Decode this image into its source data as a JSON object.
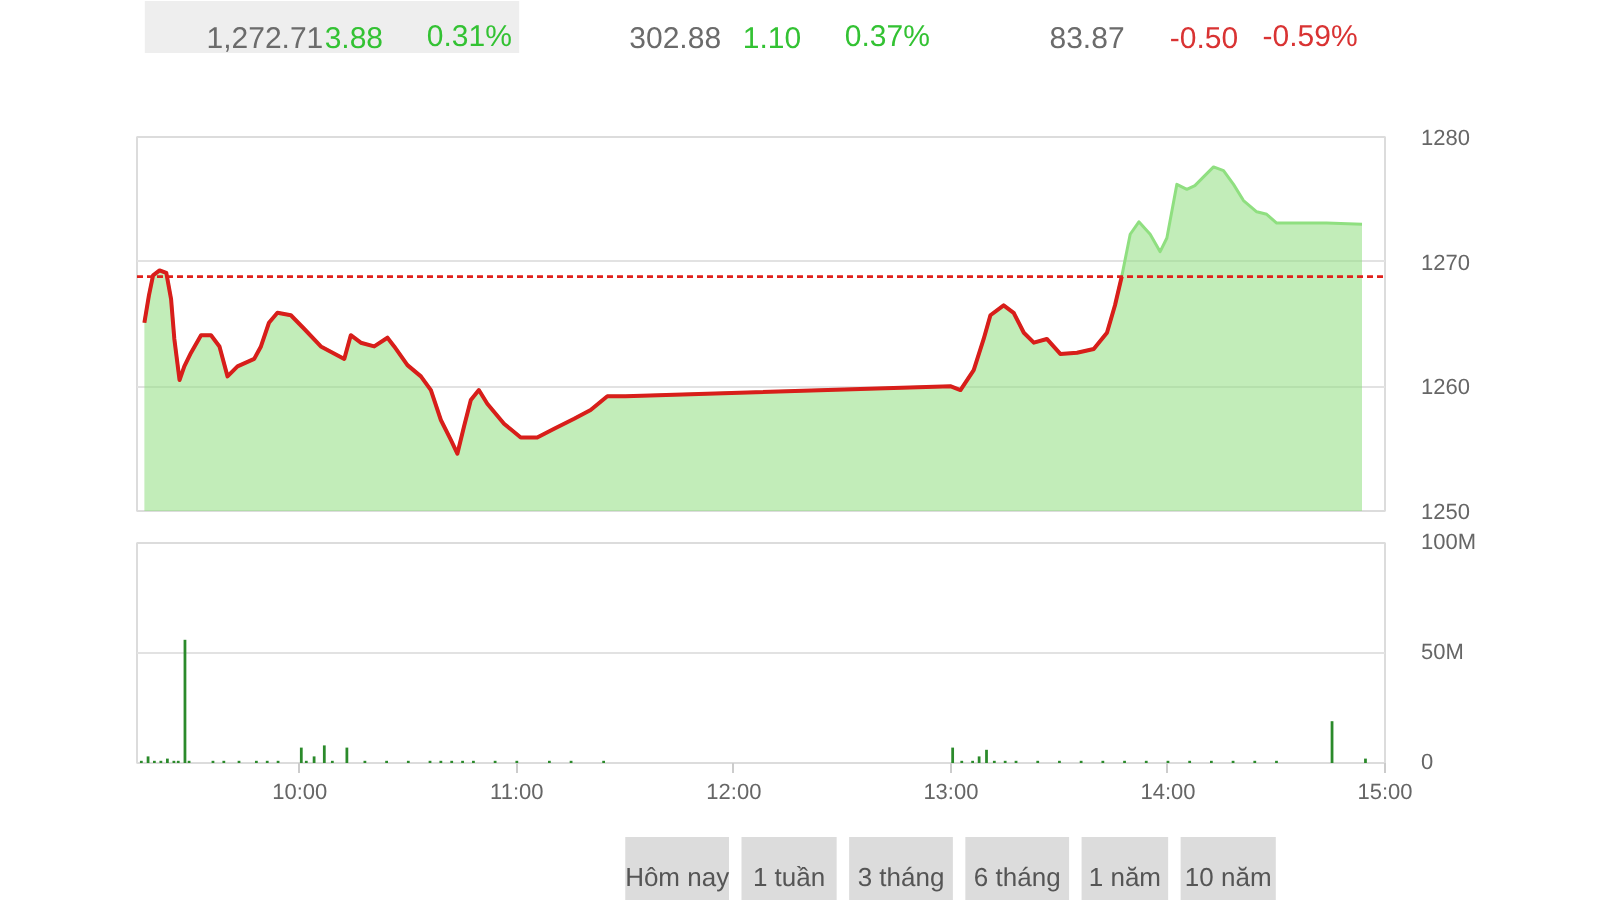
{
  "chart_data": [
    {
      "type": "other",
      "annotations": [
        "1,272.71",
        "3.88",
        "0.31%",
        "302.88",
        "1.10",
        "0.37%",
        "83.87",
        "-0.50",
        "-0.59%"
      ],
      "colors": [
        "#6b6b6b",
        "#33c233",
        "#33c233",
        "#6b6b6b",
        "#33c233",
        "#33c233",
        "#6b6b6b",
        "#d93333",
        "#d93333"
      ]
    },
    {
      "type": "area",
      "xlim": [
        9.25,
        15
      ],
      "ylim": [
        1250,
        1280
      ],
      "yticks": [
        1250,
        1260,
        1270,
        1280
      ],
      "grid": "y",
      "tick_labels": "y",
      "ref_lines": [
        {
          "axis": "y",
          "value": 1268.8,
          "color": "#e0201b",
          "line_style": "dashed"
        }
      ],
      "series": [
        {
          "type": "area",
          "color": "#8fdf80",
          "x": [
            9.284,
            9.305,
            9.324,
            9.354,
            9.385,
            9.407,
            9.422,
            9.446,
            9.468,
            9.499,
            9.545,
            9.591,
            9.63,
            9.667,
            9.713,
            9.79,
            9.821,
            9.858,
            9.897,
            9.959,
            10.021,
            10.097,
            10.205,
            10.235,
            10.281,
            10.343,
            10.404,
            10.435,
            10.496,
            10.558,
            10.604,
            10.65,
            10.696,
            10.726,
            10.757,
            10.788,
            10.825,
            10.864,
            10.941,
            11.018,
            11.094,
            11.172,
            11.264,
            11.34,
            11.417,
            11.5,
            13.0,
            13.044,
            13.105,
            13.151,
            13.182,
            13.243,
            13.289,
            13.336,
            13.382,
            13.442,
            13.504,
            13.581,
            13.658,
            13.719,
            13.756,
            13.787,
            13.826,
            13.866,
            13.918,
            13.964,
            13.995,
            14.041,
            14.087,
            14.124,
            14.164,
            14.21,
            14.256,
            14.302,
            14.348,
            14.409,
            14.455,
            14.501,
            14.731,
            14.894
          ],
          "values": [
            1265.1,
            1267.3,
            1268.9,
            1269.3,
            1269.1,
            1267.0,
            1263.8,
            1260.5,
            1261.6,
            1262.7,
            1264.1,
            1264.1,
            1263.2,
            1260.8,
            1261.6,
            1262.2,
            1263.2,
            1265.1,
            1265.9,
            1265.7,
            1264.6,
            1263.2,
            1262.2,
            1264.1,
            1263.5,
            1263.2,
            1263.9,
            1263.2,
            1261.7,
            1260.8,
            1259.7,
            1257.3,
            1255.7,
            1254.6,
            1256.8,
            1258.9,
            1259.7,
            1258.6,
            1257.0,
            1255.9,
            1255.9,
            1256.6,
            1257.4,
            1258.1,
            1259.2,
            1259.2,
            1260.0,
            1259.7,
            1261.3,
            1263.8,
            1265.7,
            1266.5,
            1265.9,
            1264.3,
            1263.5,
            1263.8,
            1262.6,
            1262.7,
            1263.0,
            1264.3,
            1266.5,
            1268.8,
            1272.2,
            1273.2,
            1272.2,
            1270.8,
            1271.9,
            1276.2,
            1275.8,
            1276.1,
            1276.8,
            1277.6,
            1277.3,
            1276.2,
            1274.9,
            1274.0,
            1273.8,
            1273.1,
            1273.1,
            1273.0
          ]
        },
        {
          "type": "line",
          "color": "#d81e1a",
          "x": [
            9.284,
            9.305,
            9.324,
            9.354,
            9.385,
            9.407,
            9.422,
            9.446,
            9.468,
            9.499,
            9.545,
            9.591,
            9.63,
            9.667,
            9.713,
            9.79,
            9.821,
            9.858,
            9.897,
            9.959,
            10.021,
            10.097,
            10.205,
            10.235,
            10.281,
            10.343,
            10.404,
            10.435,
            10.496,
            10.558,
            10.604,
            10.65,
            10.696,
            10.726,
            10.757,
            10.788,
            10.825,
            10.864,
            10.941,
            11.018,
            11.094,
            11.172,
            11.264,
            11.34,
            11.417,
            11.5,
            13.0,
            13.044,
            13.105,
            13.151,
            13.182,
            13.243,
            13.289,
            13.336,
            13.382,
            13.442,
            13.504,
            13.581,
            13.658,
            13.719,
            13.756,
            13.787
          ],
          "values": [
            1265.1,
            1267.3,
            1268.9,
            1269.3,
            1269.1,
            1267.0,
            1263.8,
            1260.5,
            1261.6,
            1262.7,
            1264.1,
            1264.1,
            1263.2,
            1260.8,
            1261.6,
            1262.2,
            1263.2,
            1265.1,
            1265.9,
            1265.7,
            1264.6,
            1263.2,
            1262.2,
            1264.1,
            1263.5,
            1263.2,
            1263.9,
            1263.2,
            1261.7,
            1260.8,
            1259.7,
            1257.3,
            1255.7,
            1254.6,
            1256.8,
            1258.9,
            1259.7,
            1258.6,
            1257.0,
            1255.9,
            1255.9,
            1256.6,
            1257.4,
            1258.1,
            1259.2,
            1259.2,
            1260.0,
            1259.7,
            1261.3,
            1263.8,
            1265.7,
            1266.5,
            1265.9,
            1264.3,
            1263.5,
            1263.8,
            1262.6,
            1262.7,
            1263.0,
            1264.3,
            1266.5,
            1268.8
          ]
        }
      ]
    },
    {
      "type": "bar",
      "xlim": [
        9.25,
        15
      ],
      "ylim": [
        0,
        100
      ],
      "yticks": [
        0,
        {
          "value": 50,
          "label": "50M"
        },
        {
          "value": 100,
          "label": "100M"
        }
      ],
      "xticks": [
        {
          "value": 10,
          "label": "10:00"
        },
        {
          "value": 11,
          "label": "11:00"
        },
        {
          "value": 12,
          "label": "12:00"
        },
        {
          "value": 13,
          "label": "13:00"
        },
        {
          "value": 14,
          "label": "14:00"
        },
        {
          "value": 15,
          "label": "15:00"
        }
      ],
      "grid": "y",
      "x": [
        9.27,
        9.301,
        9.33,
        9.36,
        9.39,
        9.42,
        9.44,
        9.471,
        9.49,
        9.6,
        9.65,
        9.72,
        9.8,
        9.85,
        9.9,
        10.007,
        10.03,
        10.066,
        10.113,
        10.15,
        10.217,
        10.3,
        10.4,
        10.5,
        10.6,
        10.65,
        10.7,
        10.75,
        10.8,
        10.9,
        11.0,
        11.15,
        11.25,
        11.4,
        13.008,
        13.05,
        13.1,
        13.13,
        13.164,
        13.2,
        13.25,
        13.3,
        13.4,
        13.5,
        13.6,
        13.7,
        13.8,
        13.9,
        14.0,
        14.1,
        14.2,
        14.3,
        14.4,
        14.5,
        14.756,
        14.91
      ],
      "series": [
        {
          "color": "#2b8a2b",
          "values": [
            1,
            3,
            1,
            1,
            2,
            1,
            1,
            56,
            1,
            1,
            1,
            1,
            1,
            1,
            1,
            7,
            1,
            3,
            8,
            1,
            7,
            1,
            1,
            1,
            1,
            1,
            1,
            1,
            1,
            1,
            1,
            1,
            1,
            1,
            7,
            1,
            1,
            3,
            6,
            1,
            1,
            1,
            1,
            1,
            1,
            1,
            1,
            1,
            1,
            1,
            1,
            1,
            1,
            1,
            19,
            2
          ]
        }
      ]
    },
    {
      "type": "other",
      "annotations": [
        "Hôm nay",
        "1 tuần",
        "3 tháng",
        "6 tháng",
        "1 năm",
        "10 năm"
      ],
      "color": "#dcdcdc"
    }
  ]
}
